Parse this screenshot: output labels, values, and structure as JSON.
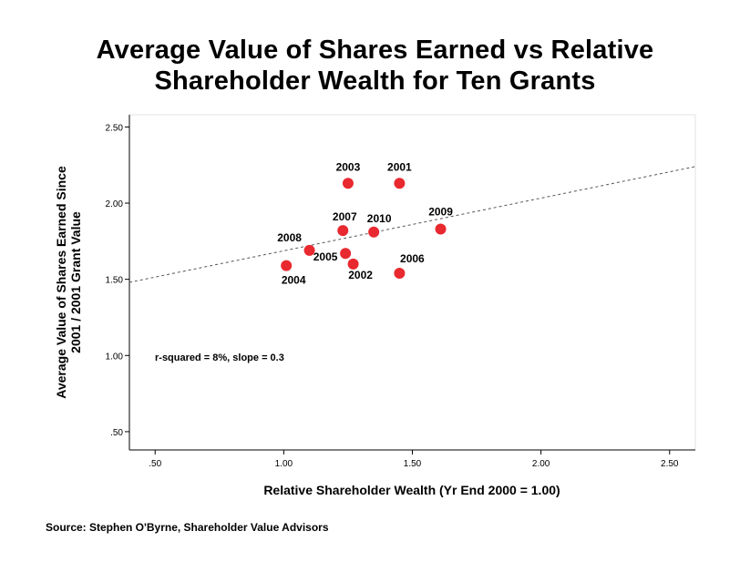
{
  "chart_data": {
    "type": "scatter",
    "title_lines": [
      "Average Value of Shares Earned vs Relative",
      "Shareholder Wealth for Ten Grants"
    ],
    "xlabel": "Relative Shareholder Wealth (Yr End 2000 = 1.00)",
    "ylabel_lines": [
      "Average Value of Shares Earned Since",
      "2001 / 2001 Grant Value"
    ],
    "xlim": [
      0.4,
      2.6
    ],
    "ylim": [
      0.38,
      2.58
    ],
    "x_ticks": [
      0.5,
      1.0,
      1.5,
      2.0,
      2.5
    ],
    "x_tick_labels": [
      ".50",
      "1.00",
      "1.50",
      "2.00",
      "2.50"
    ],
    "y_ticks": [
      0.5,
      1.0,
      1.5,
      2.0,
      2.5
    ],
    "y_tick_labels": [
      ".50",
      "1.00",
      "1.50",
      "2.00",
      "2.50"
    ],
    "grid": false,
    "point_color": "#e8292f",
    "trendline_color": "#555555",
    "points": [
      {
        "label": "2001",
        "x": 1.45,
        "y": 2.13
      },
      {
        "label": "2002",
        "x": 1.27,
        "y": 1.6
      },
      {
        "label": "2003",
        "x": 1.25,
        "y": 2.13
      },
      {
        "label": "2004",
        "x": 1.01,
        "y": 1.59
      },
      {
        "label": "2005",
        "x": 1.24,
        "y": 1.67
      },
      {
        "label": "2006",
        "x": 1.45,
        "y": 1.54
      },
      {
        "label": "2007",
        "x": 1.23,
        "y": 1.82
      },
      {
        "label": "2008",
        "x": 1.1,
        "y": 1.69
      },
      {
        "label": "2009",
        "x": 1.61,
        "y": 1.83
      },
      {
        "label": "2010",
        "x": 1.35,
        "y": 1.81
      }
    ],
    "trendline": {
      "x": [
        0.4,
        2.6
      ],
      "y": [
        1.48,
        2.24
      ]
    },
    "annotation": "r-squared = 8%, slope = 0.3"
  },
  "source": "Source: Stephen O'Byrne, Shareholder Value Advisors"
}
